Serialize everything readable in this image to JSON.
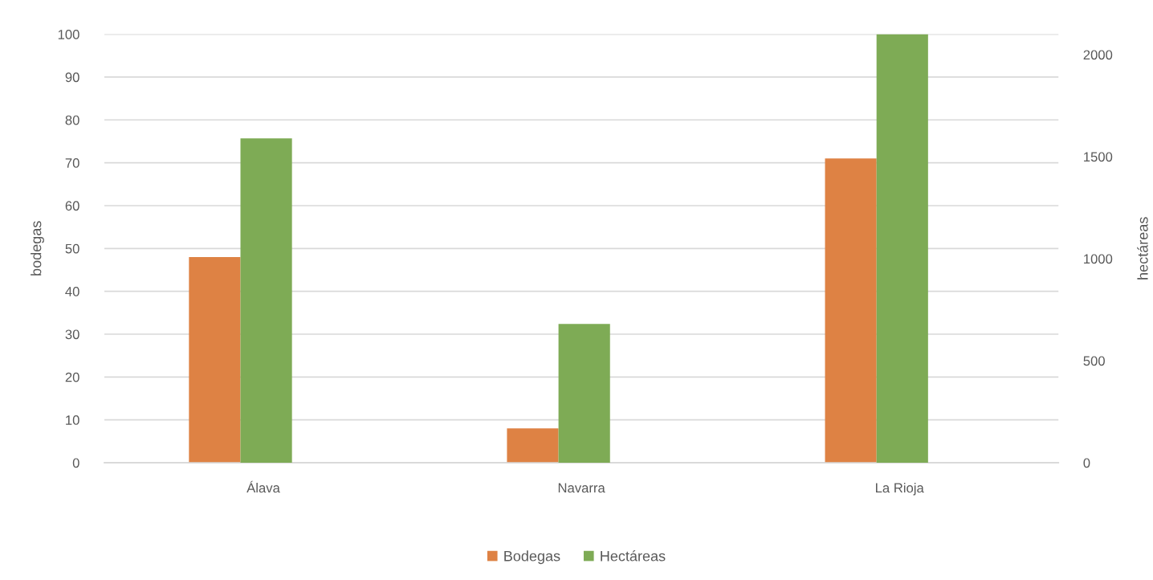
{
  "chart_data": {
    "type": "bar",
    "categories": [
      "Álava",
      "Navarra",
      "La Rioja"
    ],
    "series": [
      {
        "name": "Bodegas",
        "color": "#de8244",
        "values": [
          48,
          8,
          71
        ]
      },
      {
        "name": "Hectáreas",
        "color": "#7eab55",
        "values": [
          1590,
          680,
          2100
        ],
        "axis": "y2"
      }
    ],
    "ylabel": "bodegas",
    "y2label": "hectáreas",
    "ylim": [
      0,
      100
    ],
    "yticks": [
      0,
      10,
      20,
      30,
      40,
      50,
      60,
      70,
      80,
      90,
      100
    ],
    "y2lim": [
      0,
      2100
    ],
    "y2ticks": [
      0,
      500,
      1000,
      1500,
      2000
    ],
    "grid": "y",
    "legend": "bottom"
  }
}
